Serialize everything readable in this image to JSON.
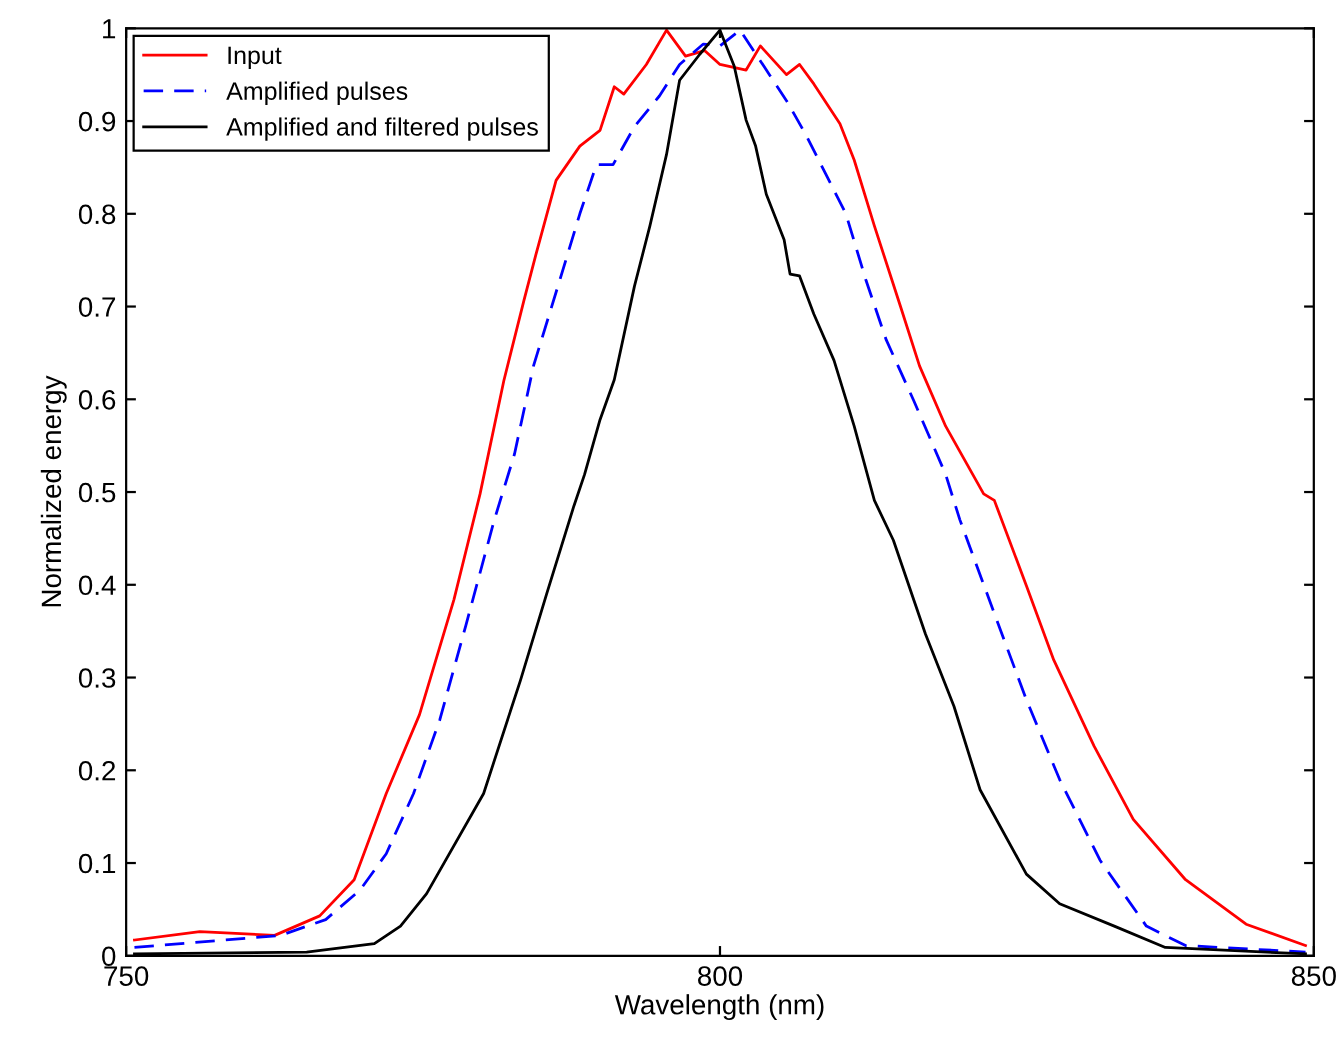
{
  "chart_data": {
    "type": "line",
    "xlabel": "Wavelength (nm)",
    "ylabel": "Normalized energy",
    "xlim": [
      750,
      850
    ],
    "xticks": [
      750,
      800,
      850
    ],
    "ylim": [
      0,
      1
    ],
    "yticks": [
      0,
      0.1,
      0.2,
      0.3,
      0.4,
      0.5,
      0.6,
      0.7,
      0.8,
      0.9,
      1
    ],
    "grid": false,
    "legend": "top left",
    "series": [
      {
        "name": "Input",
        "color": "#ff0000",
        "line_style": "solid",
        "x": [
          750.7,
          756.2,
          762.5,
          766.3,
          769.2,
          771.9,
          774.7,
          777.6,
          779.8,
          781.8,
          783.5,
          784.5,
          786.2,
          788.2,
          789.9,
          791.1,
          791.9,
          793.8,
          795.5,
          797.1,
          798.7,
          800,
          802.2,
          803.4,
          805.6,
          806.7,
          807.9,
          810.1,
          811.3,
          813,
          815.2,
          816.8,
          819,
          822.2,
          823.1,
          825.8,
          828.1,
          831.5,
          834.8,
          839.2,
          844.3,
          849.3
        ],
        "values": [
          0.017,
          0.026,
          0.022,
          0.043,
          0.082,
          0.175,
          0.26,
          0.384,
          0.498,
          0.62,
          0.707,
          0.756,
          0.836,
          0.873,
          0.89,
          0.937,
          0.929,
          0.961,
          0.998,
          0.97,
          0.976,
          0.961,
          0.955,
          0.981,
          0.95,
          0.961,
          0.94,
          0.897,
          0.858,
          0.787,
          0.7,
          0.636,
          0.571,
          0.498,
          0.491,
          0.399,
          0.319,
          0.226,
          0.147,
          0.082,
          0.034,
          0.011
        ]
      },
      {
        "name": "Amplified pulses",
        "color": "#0000ff",
        "line_style": "dashed",
        "x": [
          750.7,
          763,
          766.8,
          769.7,
          771.9,
          774.2,
          776.4,
          778.6,
          781,
          782.7,
          784.3,
          786.5,
          788.2,
          789.6,
          791,
          792.8,
          794.9,
          796.6,
          798.6,
          800,
          801.7,
          803.7,
          805.6,
          807.2,
          808.9,
          810.6,
          812.3,
          814,
          816.3,
          819,
          820.2,
          823.1,
          825.8,
          828.6,
          832,
          835.9,
          839.2,
          849.3
        ],
        "values": [
          0.009,
          0.022,
          0.039,
          0.071,
          0.11,
          0.175,
          0.254,
          0.356,
          0.47,
          0.541,
          0.636,
          0.728,
          0.8,
          0.853,
          0.853,
          0.894,
          0.927,
          0.961,
          0.983,
          0.981,
          0.998,
          0.959,
          0.922,
          0.886,
          0.843,
          0.8,
          0.728,
          0.664,
          0.599,
          0.519,
          0.47,
          0.369,
          0.276,
          0.19,
          0.103,
          0.032,
          0.011,
          0.004
        ]
      },
      {
        "name": "Amplified and filtered pulses",
        "color": "#000000",
        "line_style": "solid",
        "x": [
          750.7,
          765.2,
          770.9,
          773.1,
          775.3,
          780.1,
          783.2,
          785.4,
          787.7,
          788.6,
          789.9,
          791.1,
          792.8,
          794.1,
          795.5,
          796.6,
          798.3,
          800,
          801.2,
          802.2,
          803,
          803.9,
          805.4,
          805.9,
          806.7,
          807.9,
          809.6,
          811.3,
          813,
          814.6,
          817.3,
          819.7,
          821.9,
          825.8,
          828.6,
          833.2,
          837.5,
          849.3
        ],
        "values": [
          0.002,
          0.004,
          0.013,
          0.032,
          0.067,
          0.175,
          0.297,
          0.39,
          0.485,
          0.519,
          0.578,
          0.621,
          0.722,
          0.787,
          0.864,
          0.944,
          0.972,
          0.998,
          0.959,
          0.901,
          0.873,
          0.821,
          0.772,
          0.735,
          0.733,
          0.692,
          0.642,
          0.571,
          0.491,
          0.448,
          0.347,
          0.269,
          0.179,
          0.088,
          0.056,
          0.032,
          0.009,
          0.002
        ]
      }
    ]
  }
}
